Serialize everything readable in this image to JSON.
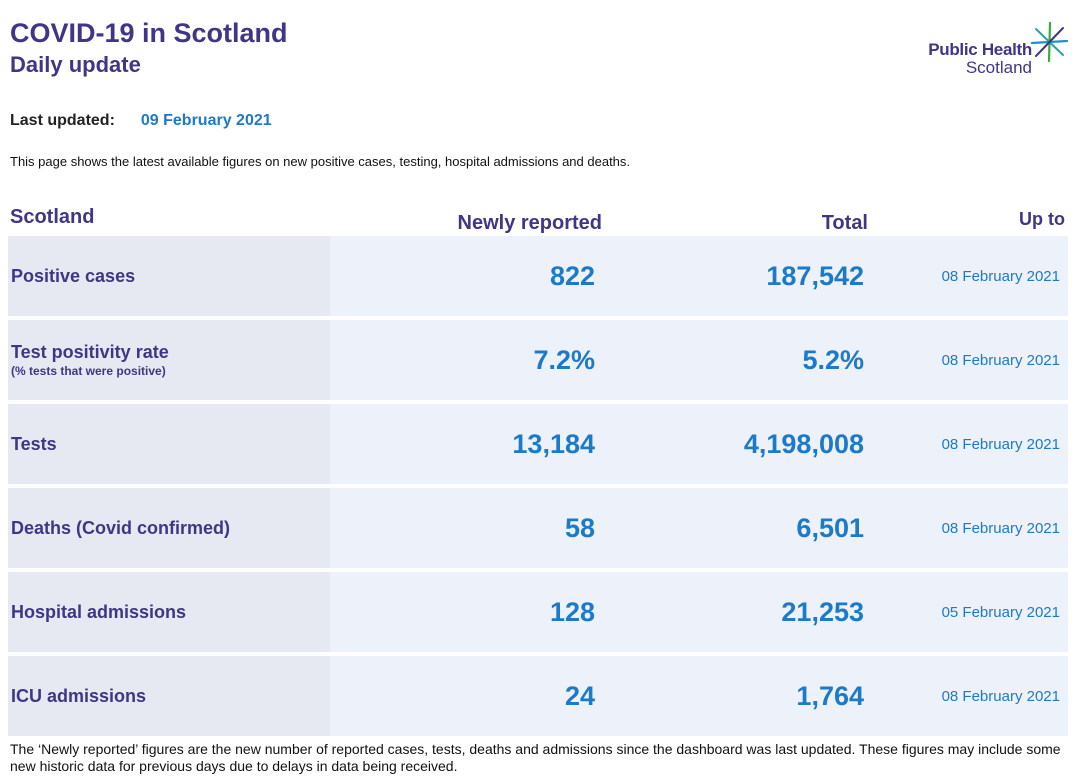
{
  "header": {
    "title": "COVID-19 in Scotland",
    "subtitle": "Daily update"
  },
  "logo": {
    "line1": "Public Health",
    "line2": "Scotland",
    "icon": "phs-star-icon"
  },
  "last_updated": {
    "label": "Last updated:",
    "value": "09 February 2021"
  },
  "intro": "This page shows the latest available figures on new positive cases, testing, hospital admissions and deaths.",
  "table": {
    "columns": {
      "area": "Scotland",
      "newly_reported": "Newly reported",
      "total": "Total",
      "up_to": "Up to"
    },
    "rows": [
      {
        "label": "Positive cases",
        "newly_reported": "822",
        "total": "187,542",
        "up_to": "08 February 2021"
      },
      {
        "label": "Test positivity rate",
        "sublabel": "(% tests that were positive)",
        "newly_reported": "7.2%",
        "total": "5.2%",
        "up_to": "08 February 2021"
      },
      {
        "label": "Tests",
        "newly_reported": "13,184",
        "total": "4,198,008",
        "up_to": "08 February 2021"
      },
      {
        "label": "Deaths (Covid confirmed)",
        "newly_reported": "58",
        "total": "6,501",
        "up_to": "08 February 2021"
      },
      {
        "label": "Hospital admissions",
        "newly_reported": "128",
        "total": "21,253",
        "up_to": "05 February 2021"
      },
      {
        "label": "ICU admissions",
        "newly_reported": "24",
        "total": "1,764",
        "up_to": "08 February 2021"
      }
    ]
  },
  "footnote": "The ‘Newly reported’ figures are the new number of reported cases, tests, deaths and admissions since the dashboard was last updated. These figures may include some new historic data for previous days due to delays in data being received.",
  "colors": {
    "purple": "#3F3685",
    "blue": "#1D7AC9",
    "label_bg": "#E6E9F2",
    "row_bg": "#EDF1F9",
    "text": "#1A1A1A"
  }
}
